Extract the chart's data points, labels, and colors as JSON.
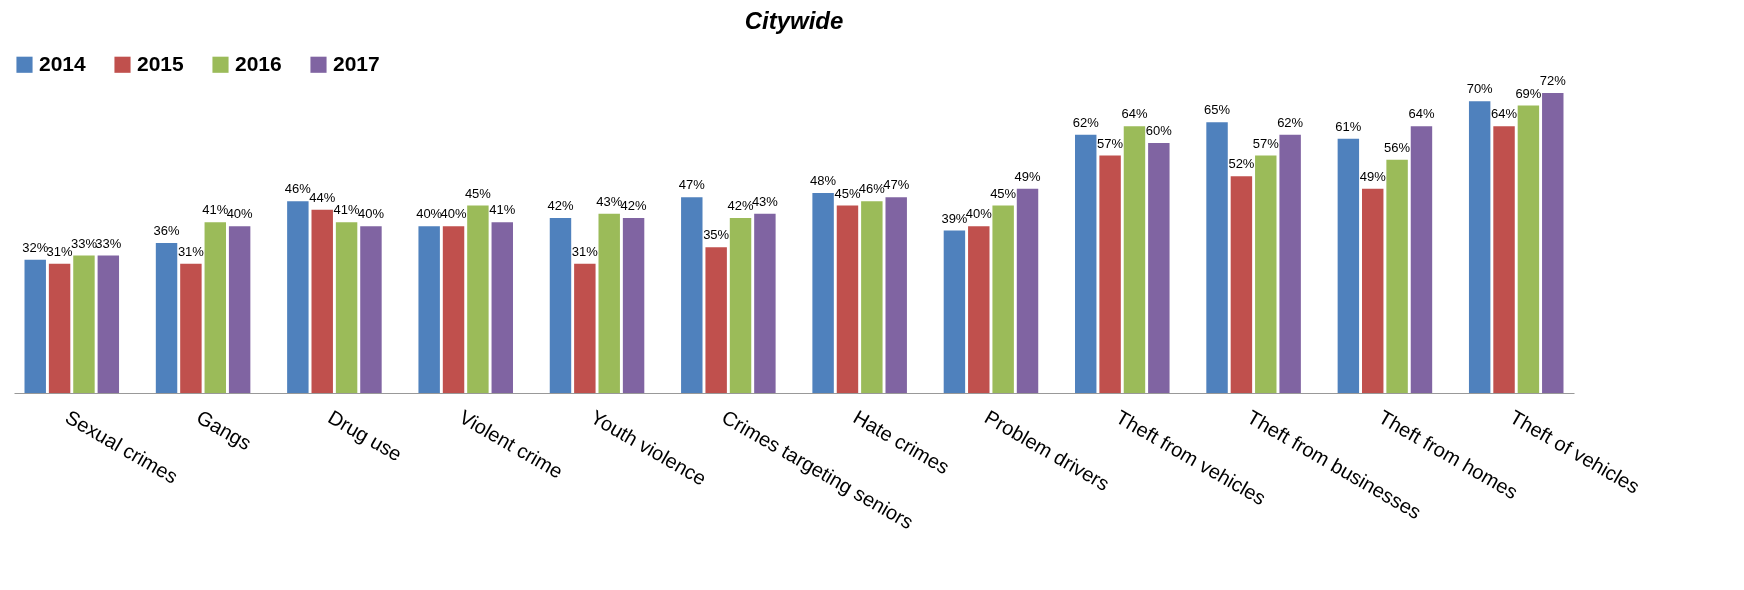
{
  "chart_data": {
    "type": "bar",
    "title": "Citywide",
    "categories": [
      "Sexual crimes",
      "Gangs",
      "Drug use",
      "Violent crime",
      "Youth violence",
      "Crimes targeting seniors",
      "Hate crimes",
      "Problem drivers",
      "Theft from vehicles",
      "Theft from businesses",
      "Theft from homes",
      "Theft of vehicles"
    ],
    "series": [
      {
        "name": "2014",
        "color": "#4f81bd",
        "values": [
          32,
          36,
          46,
          40,
          42,
          47,
          48,
          39,
          62,
          65,
          61,
          70
        ],
        "value_labels": [
          "32%",
          "36%",
          "46%",
          "40%",
          "42%",
          "47%",
          "48%",
          "39%",
          "62%",
          "65%",
          "61%",
          "70%"
        ]
      },
      {
        "name": "2015",
        "color": "#c0504d",
        "values": [
          31,
          31,
          44,
          40,
          31,
          35,
          45,
          40,
          57,
          52,
          49,
          64
        ],
        "value_labels": [
          "31%",
          "31%",
          "44%",
          "40%",
          "31%",
          "35%",
          "45%",
          "40%",
          "57%",
          "52%",
          "49%",
          "64%"
        ]
      },
      {
        "name": "2016",
        "color": "#9bbb59",
        "values": [
          33,
          41,
          41,
          45,
          43,
          42,
          46,
          45,
          64,
          57,
          56,
          69
        ],
        "value_labels": [
          "33%",
          "41%",
          "41%",
          "45%",
          "43%",
          "42%",
          "46%",
          "45%",
          "64%",
          "57%",
          "56%",
          "69%"
        ]
      },
      {
        "name": "2017",
        "color": "#8064a2",
        "values": [
          33,
          40,
          40,
          41,
          42,
          43,
          47,
          49,
          60,
          62,
          64,
          72
        ],
        "value_labels": [
          "33%",
          "40%",
          "40%",
          "41%",
          "42%",
          "43%",
          "47%",
          "49%",
          "60%",
          "62%",
          "64%",
          "72%"
        ]
      }
    ],
    "legend": "top",
    "grid": false
  }
}
